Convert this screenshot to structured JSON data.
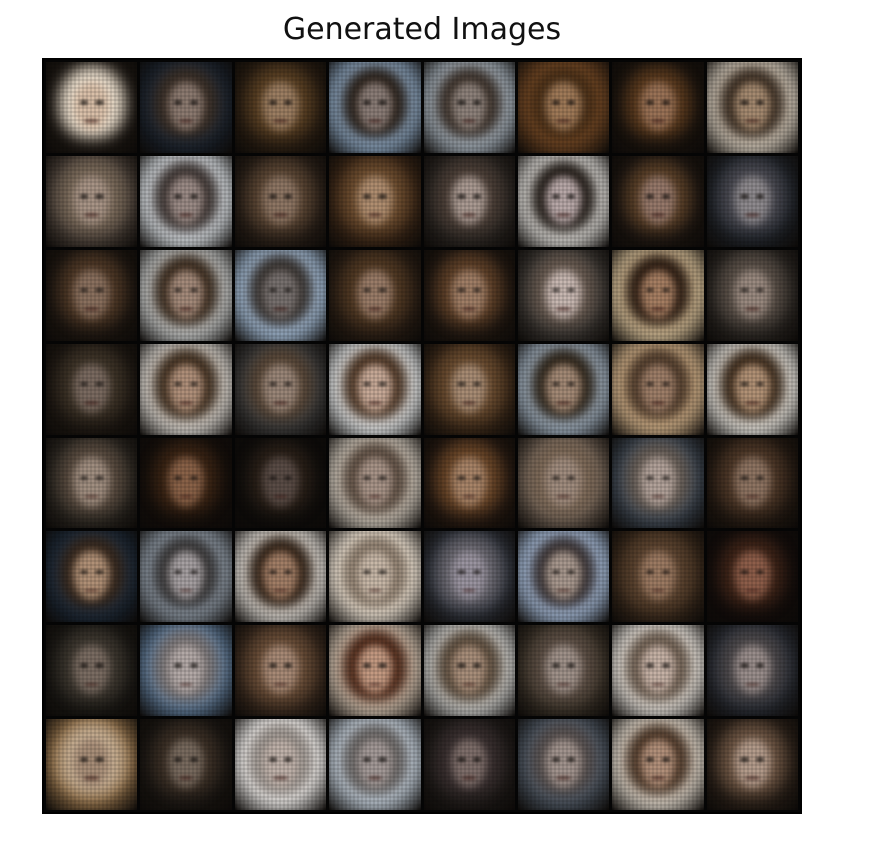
{
  "figure": {
    "title": "Generated Images"
  },
  "grid": {
    "rows": 8,
    "cols": 8,
    "tiles": [
      {
        "bg": "#1c1712",
        "hair": "#e8dccb",
        "face": "#d9bfa8"
      },
      {
        "bg": "#1b2430",
        "hair": "#3d3128",
        "face": "#8c7a70"
      },
      {
        "bg": "#2a1e12",
        "hair": "#5b4124",
        "face": "#9c7e62"
      },
      {
        "bg": "#8fa9c4",
        "hair": "#2a2018",
        "face": "#8a7c76"
      },
      {
        "bg": "#a8b4bf",
        "hair": "#3b3028",
        "face": "#8d817a"
      },
      {
        "bg": "#6b4322",
        "hair": "#4a3018",
        "face": "#a07a58"
      },
      {
        "bg": "#1a130d",
        "hair": "#5a3a1e",
        "face": "#9a7256"
      },
      {
        "bg": "#d9cfc0",
        "hair": "#3a2c20",
        "face": "#a58a70"
      },
      {
        "bg": "#4a4038",
        "hair": "#7a6a5a",
        "face": "#a89486"
      },
      {
        "bg": "#dfe5ea",
        "hair": "#3c3330",
        "face": "#9b8b86"
      },
      {
        "bg": "#2a2018",
        "hair": "#5b4634",
        "face": "#8e7664"
      },
      {
        "bg": "#3a2616",
        "hair": "#6e4e30",
        "face": "#b08e70"
      },
      {
        "bg": "#2b2622",
        "hair": "#4d4038",
        "face": "#aa9a92"
      },
      {
        "bg": "#e2e0dc",
        "hair": "#1e1712",
        "face": "#b8a8a8"
      },
      {
        "bg": "#1c1510",
        "hair": "#5a4028",
        "face": "#96786a"
      },
      {
        "bg": "#1e2228",
        "hair": "#4a4a52",
        "face": "#8e8a8e"
      },
      {
        "bg": "#1d1610",
        "hair": "#4e3826",
        "face": "#8a705e"
      },
      {
        "bg": "#cdd0d0",
        "hair": "#3a2a1c",
        "face": "#a48a7a"
      },
      {
        "bg": "#a9c2dd",
        "hair": "#3a3430",
        "face": "#77706e"
      },
      {
        "bg": "#2a1e14",
        "hair": "#523a24",
        "face": "#9a7c68"
      },
      {
        "bg": "#201710",
        "hair": "#5e4028",
        "face": "#a07e66"
      },
      {
        "bg": "#3a3632",
        "hair": "#6a5c52",
        "face": "#c8b8b2"
      },
      {
        "bg": "#e0c8a0",
        "hair": "#2a1a10",
        "face": "#a67e62"
      },
      {
        "bg": "#2a2622",
        "hair": "#5a5048",
        "face": "#9a8a80"
      },
      {
        "bg": "#1e1812",
        "hair": "#3e3428",
        "face": "#7a6a60"
      },
      {
        "bg": "#e4e0da",
        "hair": "#3e2c1c",
        "face": "#b0907a"
      },
      {
        "bg": "#3a3a3a",
        "hair": "#5a4838",
        "face": "#9a8678"
      },
      {
        "bg": "#eef2f4",
        "hair": "#4a3220",
        "face": "#c8aa98"
      },
      {
        "bg": "#3a2818",
        "hair": "#6a4c30",
        "face": "#a88c74"
      },
      {
        "bg": "#a5b5c5",
        "hair": "#2e2418",
        "face": "#a48a76"
      },
      {
        "bg": "#d4b48c",
        "hair": "#4e3a2a",
        "face": "#9e7e68"
      },
      {
        "bg": "#f0eee8",
        "hair": "#3a2818",
        "face": "#b29276"
      },
      {
        "bg": "#2a2620",
        "hair": "#5a4c40",
        "face": "#a08e80"
      },
      {
        "bg": "#140e0a",
        "hair": "#3a2414",
        "face": "#8a6248"
      },
      {
        "bg": "#0e0c0a",
        "hair": "#2a2018",
        "face": "#5a4c46"
      },
      {
        "bg": "#d0c8bc",
        "hair": "#5a4a3e",
        "face": "#a89488"
      },
      {
        "bg": "#241810",
        "hair": "#6a4628",
        "face": "#a88468"
      },
      {
        "bg": "#6a5c50",
        "hair": "#7e6a58",
        "face": "#a08c7e"
      },
      {
        "bg": "#3a4450",
        "hair": "#6a6058",
        "face": "#b2a29a"
      },
      {
        "bg": "#241a12",
        "hair": "#4e3828",
        "face": "#8e7462"
      },
      {
        "bg": "#1c2a3a",
        "hair": "#3a2a1e",
        "face": "#b09076"
      },
      {
        "bg": "#8d98a4",
        "hair": "#3a3838",
        "face": "#a6a0a2"
      },
      {
        "bg": "#e8e4de",
        "hair": "#2e1e12",
        "face": "#a27e66"
      },
      {
        "bg": "#eae0d2",
        "hair": "#8a7a6a",
        "face": "#c8b8a8"
      },
      {
        "bg": "#2a2e36",
        "hair": "#6a6870",
        "face": "#9a94a0"
      },
      {
        "bg": "#a8bedc",
        "hair": "#3a3232",
        "face": "#a8988e"
      },
      {
        "bg": "#3a2a1c",
        "hair": "#5c4430",
        "face": "#9c7a62"
      },
      {
        "bg": "#120c0a",
        "hair": "#3e2418",
        "face": "#8e5e4a"
      },
      {
        "bg": "#1a1814",
        "hair": "#3e3830",
        "face": "#7a6c62"
      },
      {
        "bg": "#5a7694",
        "hair": "#7e7878",
        "face": "#b4aaa8"
      },
      {
        "bg": "#3a2a1e",
        "hair": "#6a4e38",
        "face": "#a88a76"
      },
      {
        "bg": "#d6c6b4",
        "hair": "#4a2414",
        "face": "#c49a82"
      },
      {
        "bg": "#cfd0ce",
        "hair": "#5a4a3a",
        "face": "#a88e7a"
      },
      {
        "bg": "#3a3228",
        "hair": "#5e5046",
        "face": "#a0928a"
      },
      {
        "bg": "#e8e4de",
        "hair": "#6a5a4c",
        "face": "#c6b2a6"
      },
      {
        "bg": "#262a32",
        "hair": "#4e4a4c",
        "face": "#9a8e8c"
      },
      {
        "bg": "#8a6a44",
        "hair": "#c8b094",
        "face": "#a88e78"
      },
      {
        "bg": "#1a1612",
        "hair": "#3c3026",
        "face": "#786a5e"
      },
      {
        "bg": "#e6e4e2",
        "hair": "#9a928c",
        "face": "#c0b2aa"
      },
      {
        "bg": "#c0ccd8",
        "hair": "#6a6664",
        "face": "#a49a98"
      },
      {
        "bg": "#1e1a18",
        "hair": "#3a3030",
        "face": "#7e6e6a"
      },
      {
        "bg": "#4a5460",
        "hair": "#5a5250",
        "face": "#a2948e"
      },
      {
        "bg": "#e4dcd0",
        "hair": "#4a3424",
        "face": "#b2907a"
      },
      {
        "bg": "#2a2018",
        "hair": "#6e5644",
        "face": "#b49c8c"
      }
    ]
  }
}
